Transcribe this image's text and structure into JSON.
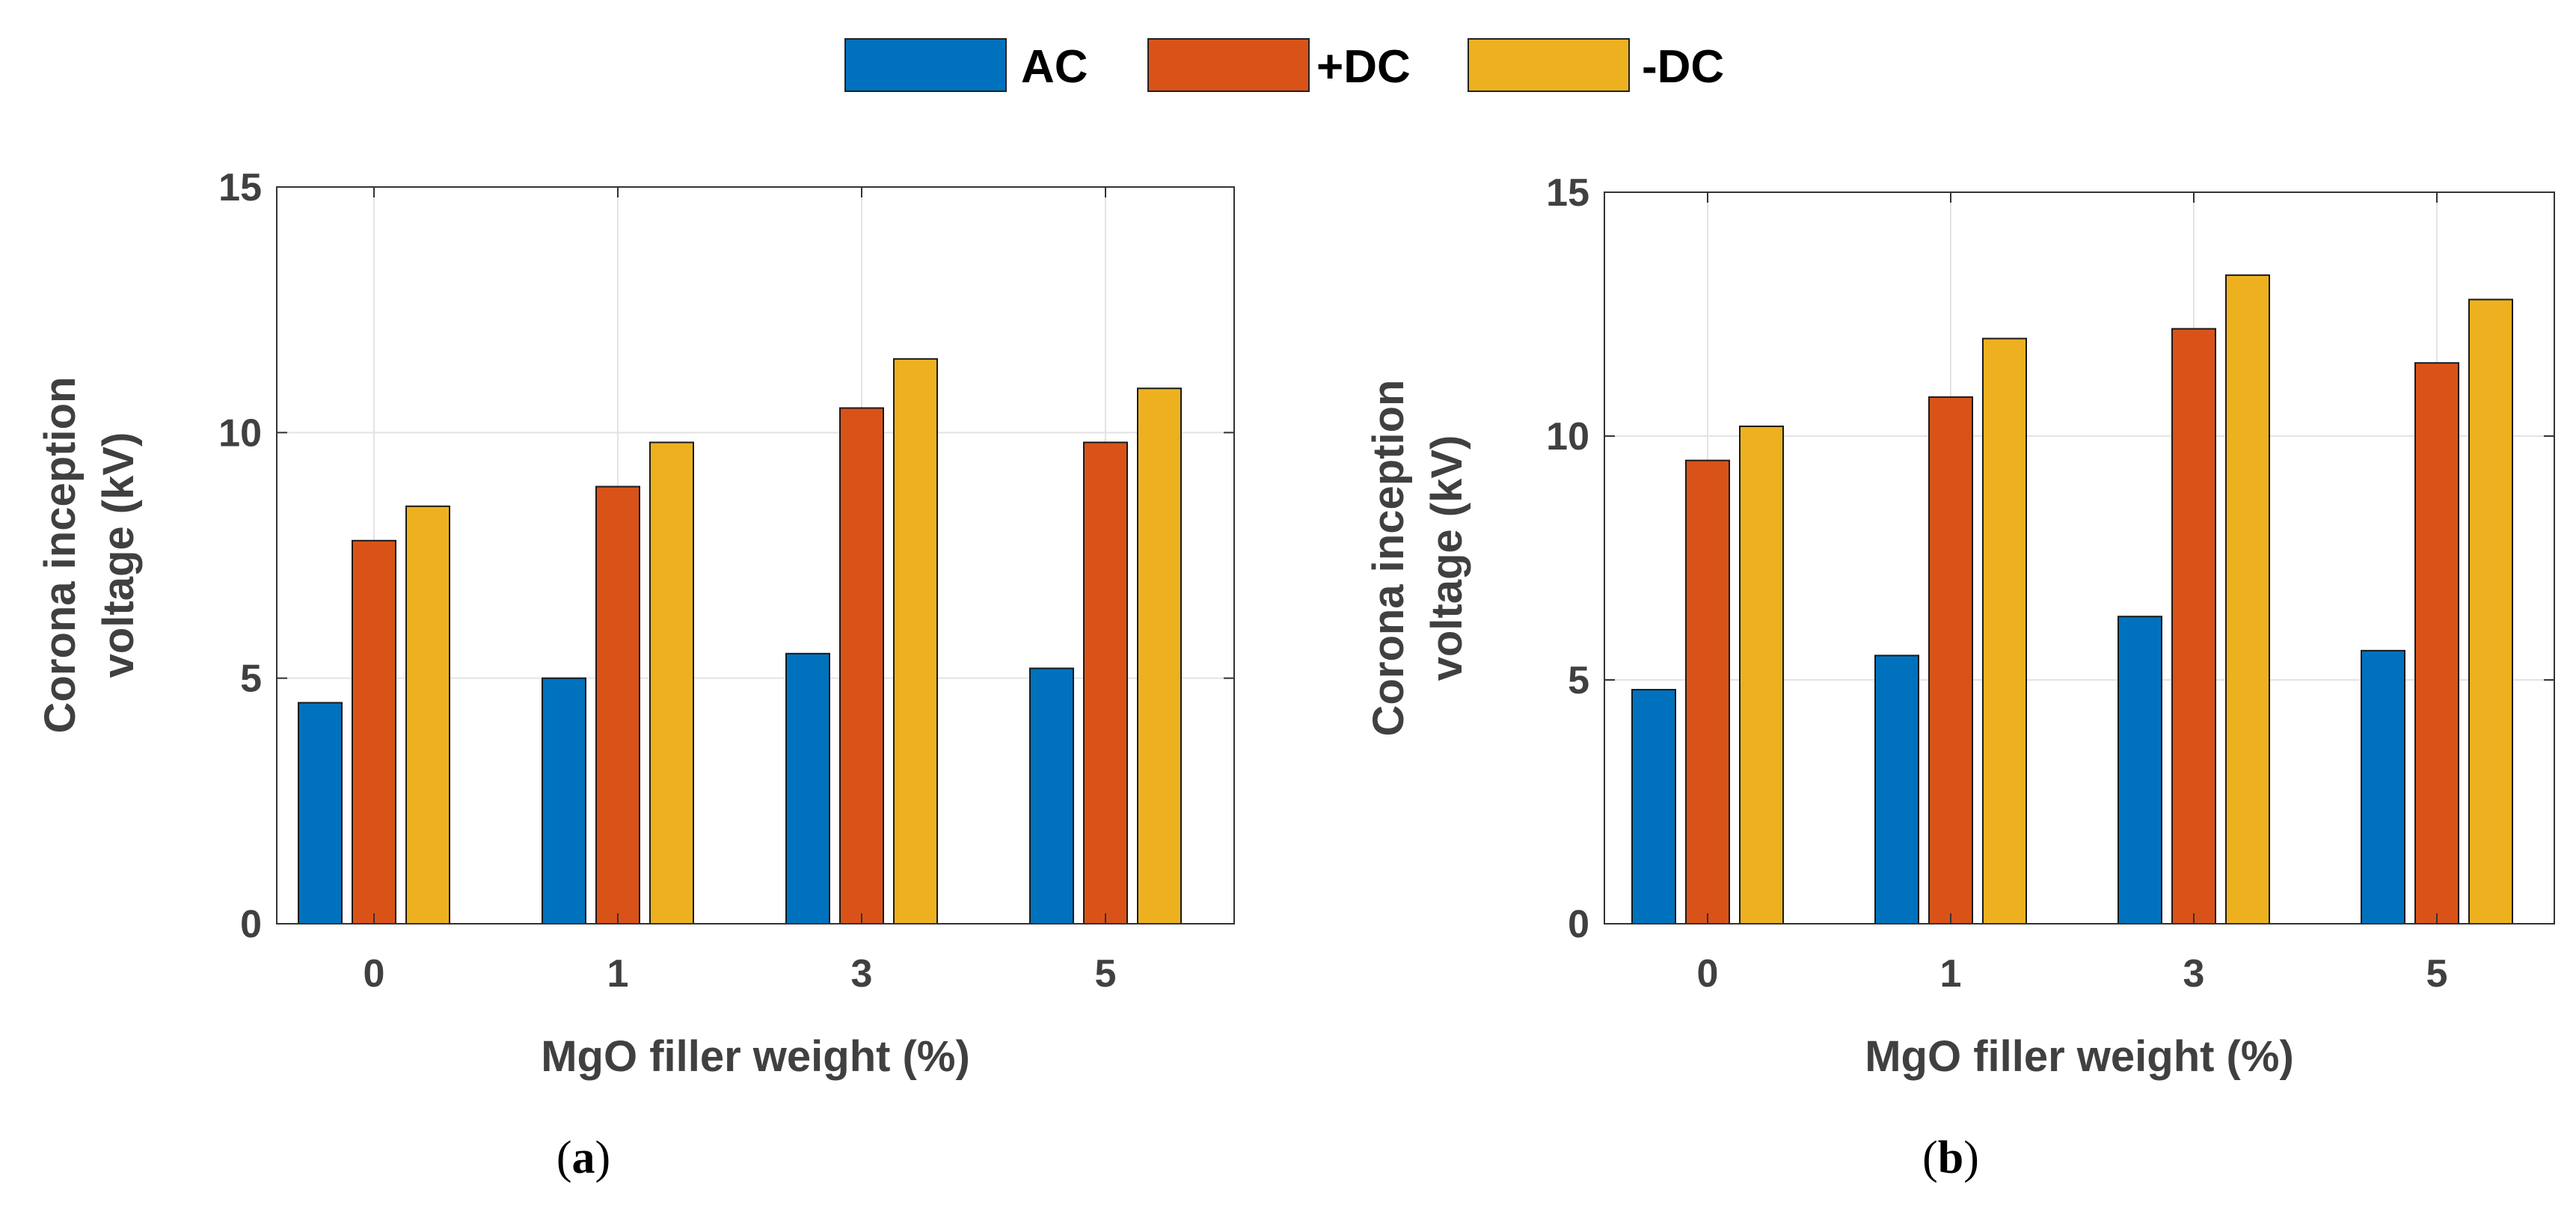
{
  "legend": [
    {
      "name": "AC",
      "color": "#0072BD"
    },
    {
      "name": "+DC",
      "color": "#D95319"
    },
    {
      "name": "-DC",
      "color": "#EDB120"
    }
  ],
  "chart_data": [
    {
      "type": "bar",
      "caption": {
        "open": "(",
        "letter": "a",
        "close": ")"
      },
      "categories": [
        "0",
        "1",
        "3",
        "5"
      ],
      "series": [
        {
          "name": "AC",
          "values": [
            4.5,
            5.0,
            5.5,
            5.2
          ]
        },
        {
          "name": "+DC",
          "values": [
            7.8,
            8.9,
            10.5,
            9.8
          ]
        },
        {
          "name": "-DC",
          "values": [
            8.5,
            9.8,
            11.5,
            10.9
          ]
        }
      ],
      "xlabel": "MgO filler weight (%)",
      "ylabel_lines": [
        "Corona inception",
        "voltage (kV)"
      ],
      "ylim": [
        0,
        15
      ],
      "yticks": [
        0,
        5,
        10,
        15
      ],
      "grid": true
    },
    {
      "type": "bar",
      "caption": {
        "open": "(",
        "letter": "b",
        "close": ")"
      },
      "categories": [
        "0",
        "1",
        "3",
        "5"
      ],
      "series": [
        {
          "name": "AC",
          "values": [
            4.8,
            5.5,
            6.3,
            5.6
          ]
        },
        {
          "name": "+DC",
          "values": [
            9.5,
            10.8,
            12.2,
            11.5
          ]
        },
        {
          "name": "-DC",
          "values": [
            10.2,
            12.0,
            13.3,
            12.8
          ]
        }
      ],
      "xlabel": "MgO filler weight (%)",
      "ylabel_lines": [
        "Corona inception",
        "voltage (kV)"
      ],
      "ylim": [
        0,
        15
      ],
      "yticks": [
        0,
        5,
        10,
        15
      ],
      "grid": true
    }
  ]
}
